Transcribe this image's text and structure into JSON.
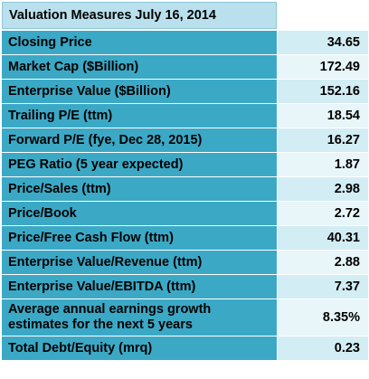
{
  "title": "Valuation Measures July 16, 2014",
  "colors": {
    "header_bg": "#b9e0ec",
    "label_bg": "#3ba9c6",
    "value_bg_dark": "#d3edf4",
    "value_bg_light": "#e8f6fa"
  },
  "rows": [
    {
      "label": "Closing Price",
      "value": "34.65"
    },
    {
      "label": "Market Cap ($Billion)",
      "value": "172.49"
    },
    {
      "label": "Enterprise Value ($Billion)",
      "value": "152.16"
    },
    {
      "label": "Trailing P/E (ttm)",
      "value": "18.54"
    },
    {
      "label": "Forward P/E (fye, Dec 28, 2015)",
      "value": "16.27"
    },
    {
      "label": "PEG Ratio (5 year expected)",
      "value": "1.87"
    },
    {
      "label": "Price/Sales (ttm)",
      "value": "2.98"
    },
    {
      "label": "Price/Book",
      "value": "2.72"
    },
    {
      "label": "Price/Free Cash Flow (ttm)",
      "value": "40.31"
    },
    {
      "label": "Enterprise Value/Revenue (ttm)",
      "value": "2.88"
    },
    {
      "label": "Enterprise Value/EBITDA (ttm)",
      "value": "7.37"
    },
    {
      "label": "Average annual earnings growth estimates for the next 5 years",
      "value": "8.35%"
    },
    {
      "label": "Total Debt/Equity (mrq)",
      "value": "0.23"
    }
  ]
}
